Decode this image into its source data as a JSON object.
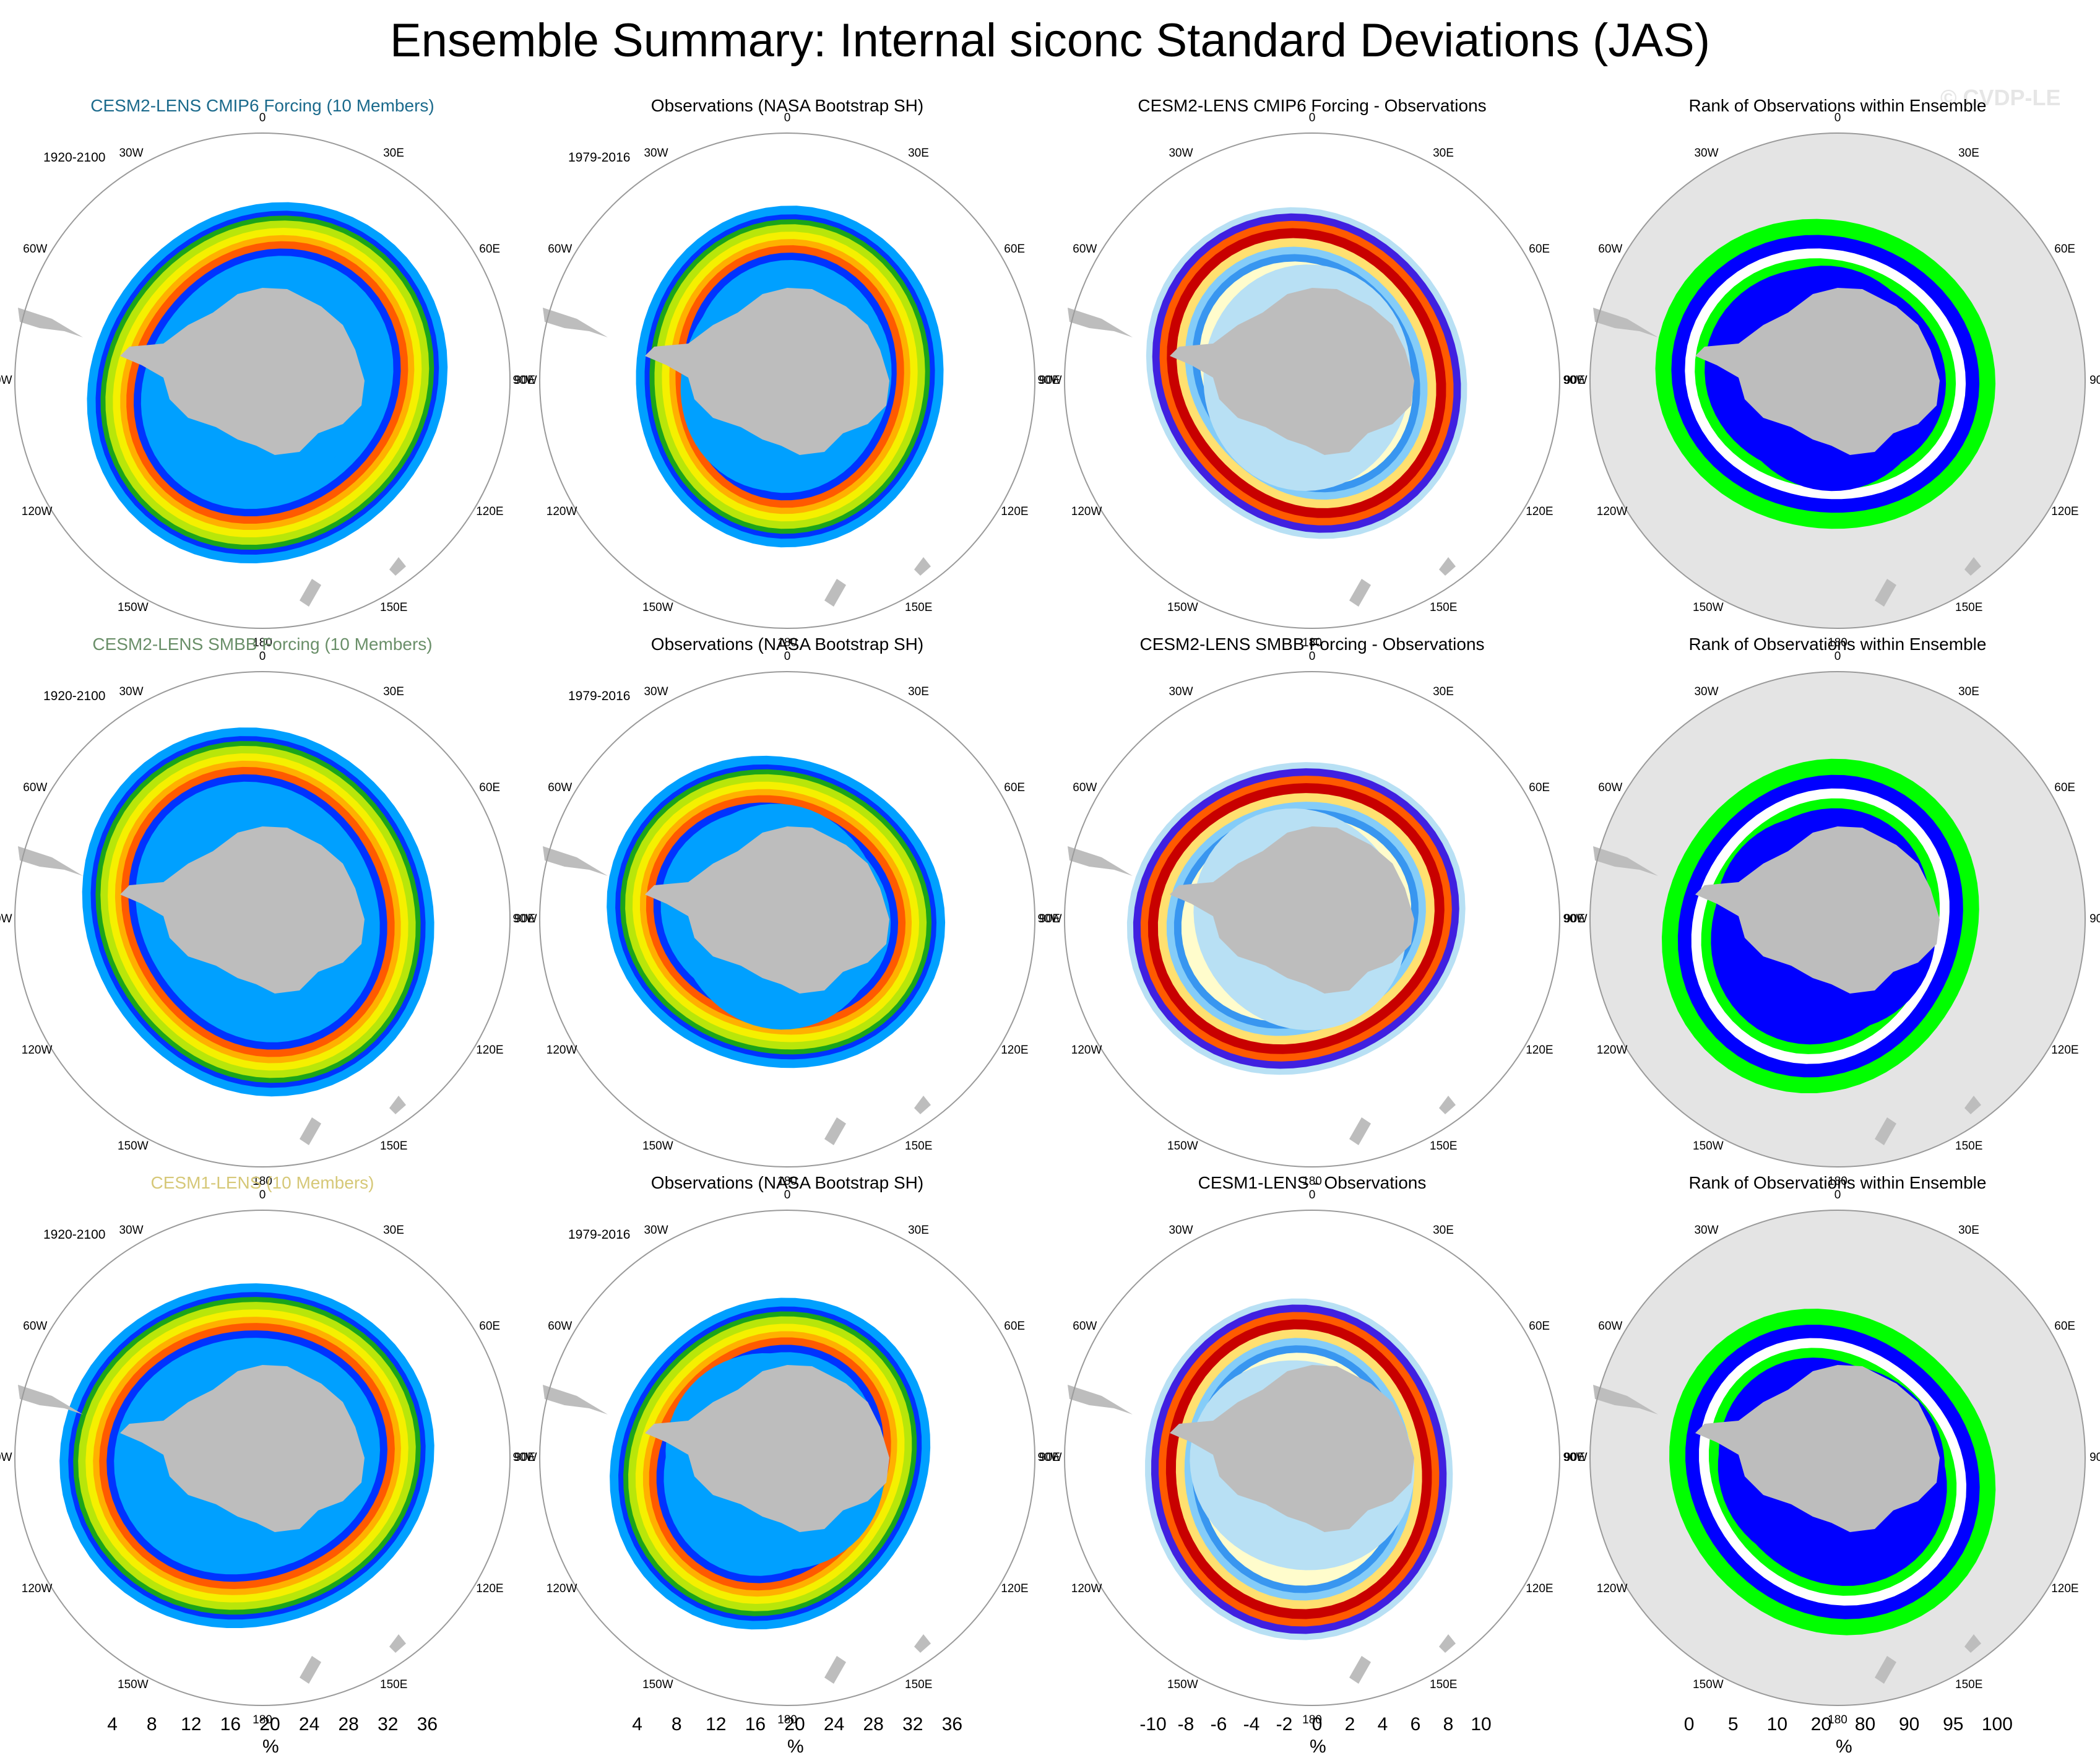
{
  "title": "Ensemble Summary: Internal siconc Standard Deviations (JAS)",
  "watermark": "© CVDP-LE",
  "longitude_labels": [
    "0",
    "30E",
    "60E",
    "90E",
    "120E",
    "150E",
    "180",
    "150W",
    "120W",
    "90W",
    "60W",
    "30W"
  ],
  "colors": {
    "land": "#bdbdbd",
    "rank_background": "#e4e4e4",
    "row1_title": "#1b6a8c",
    "row2_title": "#6a8f69",
    "row3_title": "#d6c878",
    "std": [
      "#00a0ff",
      "#0033ff",
      "#1aa51a",
      "#b8e60a",
      "#f5f000",
      "#ffb000",
      "#ff5a00",
      "#c8002a",
      "#7a0066",
      "#c8a8d8"
    ],
    "diff": [
      "#7a2cf0",
      "#4020e0",
      "#2844e0",
      "#3c6cf0",
      "#3896f0",
      "#58b4f8",
      "#84ccf8",
      "#b8e0f4",
      "#fffccc",
      "#ffe070",
      "#ffb830",
      "#ff8c10",
      "#ff5a00",
      "#f02800",
      "#c80000",
      "#ffb4b4"
    ],
    "rank": [
      "#0000ff",
      "#6666ff",
      "#b8b8ff",
      "#e0e0ff",
      "#ffffff",
      "#e8ffe8",
      "#c4ffc4",
      "#8cff8c",
      "#00ff00"
    ]
  },
  "rows": [
    {
      "model_title": "CESM2-LENS CMIP6 Forcing (10 Members)",
      "model_period": "1920-2100",
      "obs_title": "Observations (NASA Bootstrap SH)",
      "obs_period": "1979-2016",
      "diff_title": "CESM2-LENS CMIP6 Forcing - Observations",
      "rank_title": "Rank of Observations within Ensemble"
    },
    {
      "model_title": "CESM2-LENS SMBB Forcing (10 Members)",
      "model_period": "1920-2100",
      "obs_title": "Observations (NASA Bootstrap SH)",
      "obs_period": "1979-2016",
      "diff_title": "CESM2-LENS SMBB Forcing - Observations",
      "rank_title": "Rank of Observations within Ensemble"
    },
    {
      "model_title": "CESM1-LENS (10 Members)",
      "model_period": "1920-2100",
      "obs_title": "Observations (NASA Bootstrap SH)",
      "obs_period": "1979-2016",
      "diff_title": "CESM1-LENS - Observations",
      "rank_title": "Rank of Observations within Ensemble"
    }
  ],
  "colorbars": [
    {
      "unit": "%",
      "labels": [
        "4",
        "8",
        "12",
        "16",
        "20",
        "24",
        "28",
        "32",
        "36"
      ]
    },
    {
      "unit": "%",
      "labels": [
        "4",
        "8",
        "12",
        "16",
        "20",
        "24",
        "28",
        "32",
        "36"
      ]
    },
    {
      "unit": "%",
      "labels": [
        "-10",
        "-8",
        "-6",
        "-4",
        "-2",
        "0",
        "2",
        "4",
        "6",
        "8",
        "10"
      ]
    },
    {
      "unit": "%",
      "labels": [
        "0",
        "5",
        "10",
        "20",
        "80",
        "90",
        "95",
        "100"
      ]
    }
  ]
}
